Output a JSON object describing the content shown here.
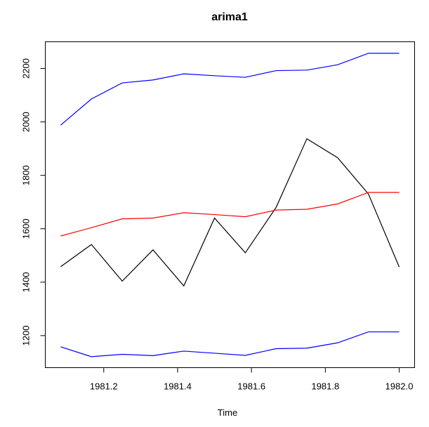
{
  "chart_data": {
    "type": "line",
    "title": "arima1",
    "xlabel": "Time",
    "ylabel": "",
    "xlim": [
      1981.0417,
      1982.0417
    ],
    "ylim": [
      1080,
      2300
    ],
    "x": [
      1981.0833,
      1981.1667,
      1981.25,
      1981.3333,
      1981.4167,
      1981.5,
      1981.5833,
      1981.6667,
      1981.75,
      1981.8333,
      1981.9167,
      1982.0
    ],
    "xticks": [
      1981.2,
      1981.4,
      1981.6,
      1981.8,
      1982.0
    ],
    "xtick_labels": [
      "1981.2",
      "1981.4",
      "1981.6",
      "1981.8",
      "1982.0"
    ],
    "yticks": [
      1200,
      1400,
      1600,
      1800,
      2000,
      2200
    ],
    "ytick_labels": [
      "1200",
      "1400",
      "1600",
      "1800",
      "2000",
      "2200"
    ],
    "grid": false,
    "series": [
      {
        "color": "#000000",
        "values": [
          1458,
          1541,
          1404,
          1521,
          1386,
          1640,
          1510,
          1680,
          1937,
          1866,
          1730,
          1457
        ]
      },
      {
        "color": "#ff0000",
        "values": [
          1573,
          1604,
          1637,
          1640,
          1660,
          1653,
          1645,
          1670,
          1673,
          1693,
          1736,
          1736
        ]
      },
      {
        "color": "#0000ff",
        "values": [
          1988,
          2086,
          2146,
          2157,
          2180,
          2173,
          2167,
          2192,
          2194,
          2214,
          2257,
          2257
        ]
      },
      {
        "color": "#0000ff",
        "values": [
          1158,
          1121,
          1130,
          1125,
          1142,
          1134,
          1126,
          1151,
          1153,
          1173,
          1214,
          1214
        ]
      }
    ]
  }
}
